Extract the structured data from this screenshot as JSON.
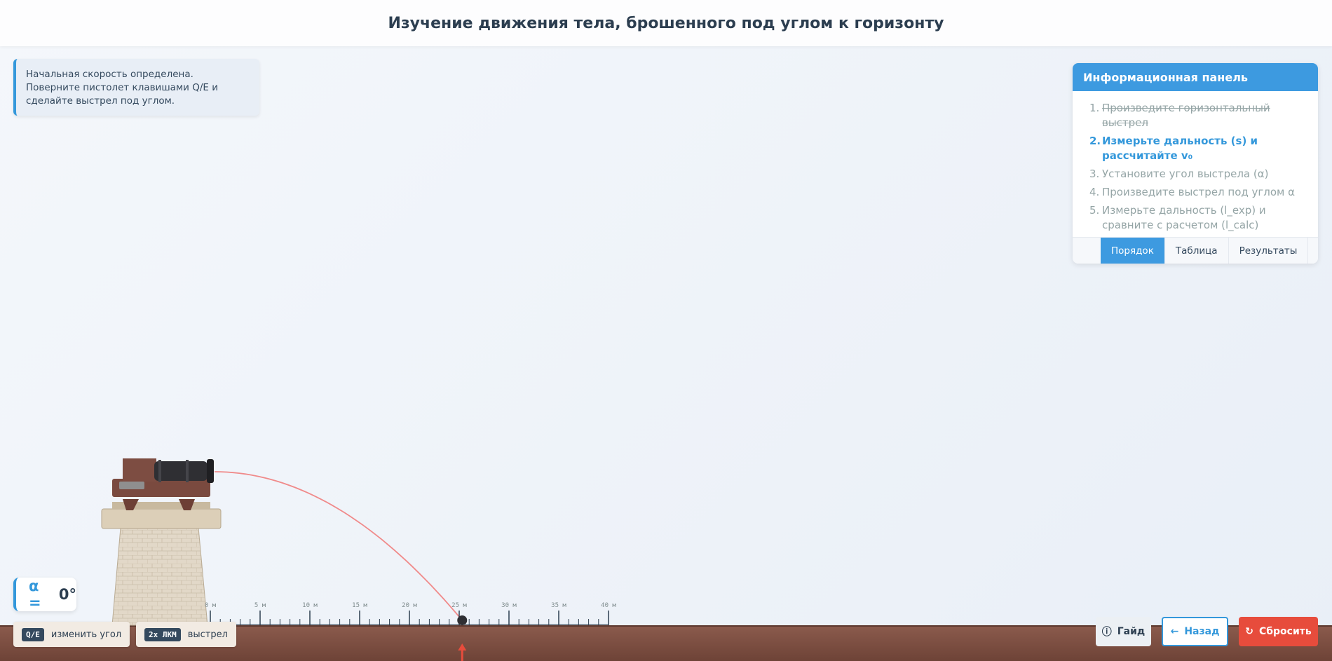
{
  "header": {
    "title": "Изучение движения тела, брошенного под углом к горизонту"
  },
  "hint": {
    "text": "Начальная скорость определена. Поверните пистолет клавишами Q/E и сделайте выстрел под углом."
  },
  "info_panel": {
    "title": "Информационная панель",
    "steps": [
      {
        "num": "1.",
        "text": "Произведите горизонтальный выстрел",
        "state": "done"
      },
      {
        "num": "2.",
        "text": "Измерьте дальность (s) и рассчитайте v₀",
        "state": "active"
      },
      {
        "num": "3.",
        "text": "Установите угол выстрела (α)",
        "state": "pending"
      },
      {
        "num": "4.",
        "text": "Произведите выстрел под углом α",
        "state": "pending"
      },
      {
        "num": "5.",
        "text": "Измерьте дальность (l_exp) и сравните с расчетом (l_calc)",
        "state": "pending"
      }
    ],
    "tabs": [
      {
        "label": "Порядок",
        "active": true
      },
      {
        "label": "Таблица",
        "active": false
      },
      {
        "label": "Результаты",
        "active": false
      }
    ]
  },
  "ruler": {
    "labels": [
      "0 м",
      "5 м",
      "10 м",
      "15 м",
      "20 м",
      "25 м",
      "30 м",
      "35 м",
      "40 м"
    ],
    "max_m": 40
  },
  "shot": {
    "landing_m": 25.3
  },
  "angle": {
    "symbol": "α =",
    "value": "0°"
  },
  "controls": {
    "rotate_key": "Q/E",
    "rotate_label": "изменить угол",
    "fire_key": "2x ЛКМ",
    "fire_label": "выстрел"
  },
  "buttons": {
    "guide": "Гайд",
    "back": "Назад",
    "reset": "Сбросить"
  },
  "colors": {
    "accent": "#3498db",
    "danger": "#e74c3c",
    "ground": "#7a4c3f",
    "trajectory": "#f08a8a"
  },
  "icons": {
    "guide": "info-icon",
    "back": "arrow-left-icon",
    "reset": "refresh-icon",
    "marker": "arrow-up-icon"
  }
}
